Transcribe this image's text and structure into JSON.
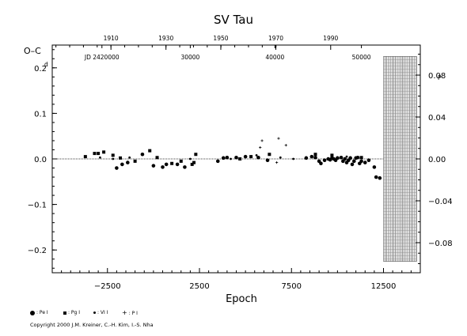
{
  "chart_data": {
    "type": "scatter",
    "title": "SV Tau",
    "xlabel": "Epoch",
    "ylabel": "O–C",
    "y_unit_left": "d",
    "y_unit_right": "P",
    "xlim": [
      -5500,
      14500
    ],
    "ylim": [
      -0.25,
      0.25
    ],
    "x_ticks": [
      {
        "value": -2500,
        "label": "−2500"
      },
      {
        "value": 2500,
        "label": "2500"
      },
      {
        "value": 7500,
        "label": "7500"
      },
      {
        "value": 12500,
        "label": "12500"
      }
    ],
    "y_ticks": [
      {
        "value": 0.2,
        "label": "0.2"
      },
      {
        "value": 0.1,
        "label": "0.1"
      },
      {
        "value": 0.0,
        "label": "0.0"
      },
      {
        "value": -0.1,
        "label": "−0.1"
      },
      {
        "value": -0.2,
        "label": "−0.2"
      }
    ],
    "y2_ticks": [
      {
        "value": 0.08,
        "label": "0.08"
      },
      {
        "value": 0.04,
        "label": "0.04"
      },
      {
        "value": 0.0,
        "label": "0.00"
      },
      {
        "value": -0.04,
        "label": "−0.04"
      },
      {
        "value": -0.08,
        "label": "−0.08"
      }
    ],
    "year_ticks": [
      {
        "epoch": -2310,
        "label": "1910"
      },
      {
        "epoch": 680,
        "label": "1930"
      },
      {
        "epoch": 3660,
        "label": "1950"
      },
      {
        "epoch": 6650,
        "label": "1970"
      },
      {
        "epoch": 9630,
        "label": "1990"
      }
    ],
    "jd_labels": [
      {
        "epoch": -2800,
        "label": "JD 2420000"
      },
      {
        "epoch": 2000,
        "label": "30000"
      },
      {
        "epoch": 6600,
        "label": "40000"
      },
      {
        "epoch": 11300,
        "label": "50000"
      }
    ],
    "series": [
      {
        "name": "Pe",
        "marker": "circle",
        "values": [
          [
            -2000,
            -0.02
          ],
          [
            -1700,
            -0.012
          ],
          [
            -1400,
            -0.008
          ],
          [
            -600,
            0.01
          ],
          [
            0,
            -0.015
          ],
          [
            500,
            -0.018
          ],
          [
            700,
            -0.012
          ],
          [
            1300,
            -0.012
          ],
          [
            1700,
            -0.018
          ],
          [
            3500,
            -0.005
          ],
          [
            3800,
            0.002
          ],
          [
            4000,
            0.003
          ],
          [
            4500,
            0.003
          ],
          [
            5000,
            0.005
          ],
          [
            5700,
            0.003
          ],
          [
            6200,
            -0.003
          ],
          [
            8300,
            0.002
          ],
          [
            8600,
            0.005
          ],
          [
            8800,
            0.003
          ],
          [
            9000,
            -0.005
          ],
          [
            9100,
            -0.01
          ],
          [
            9300,
            -0.003
          ],
          [
            9500,
            0.0
          ],
          [
            9600,
            -0.002
          ],
          [
            9700,
            0.002
          ],
          [
            9800,
            0.0
          ],
          [
            9900,
            -0.003
          ],
          [
            10000,
            0.002
          ],
          [
            10200,
            0.003
          ],
          [
            10300,
            -0.005
          ],
          [
            10400,
            0.0
          ],
          [
            10500,
            -0.008
          ],
          [
            10600,
            -0.003
          ],
          [
            10700,
            0.002
          ],
          [
            10800,
            -0.012
          ],
          [
            10900,
            -0.005
          ],
          [
            11000,
            0.002
          ],
          [
            11100,
            0.003
          ],
          [
            11200,
            -0.01
          ],
          [
            11300,
            -0.005
          ],
          [
            11500,
            -0.008
          ],
          [
            11700,
            -0.003
          ],
          [
            12000,
            -0.018
          ],
          [
            12100,
            -0.04
          ],
          [
            12300,
            -0.042
          ]
        ]
      },
      {
        "name": "Pg",
        "marker": "square",
        "values": [
          [
            -3700,
            0.005
          ],
          [
            -3200,
            0.012
          ],
          [
            -3000,
            0.012
          ],
          [
            -2700,
            0.015
          ],
          [
            -2200,
            0.008
          ],
          [
            -1800,
            0.002
          ],
          [
            -1000,
            -0.005
          ],
          [
            -200,
            0.018
          ],
          [
            200,
            0.003
          ],
          [
            1000,
            -0.01
          ],
          [
            1500,
            -0.005
          ],
          [
            2100,
            -0.012
          ],
          [
            2200,
            -0.008
          ],
          [
            2300,
            0.01
          ],
          [
            4700,
            0.0
          ],
          [
            5300,
            0.005
          ],
          [
            6300,
            0.01
          ],
          [
            8800,
            0.01
          ],
          [
            9700,
            0.008
          ],
          [
            11300,
            0.003
          ]
        ]
      },
      {
        "name": "Vi",
        "marker": "smallcircle",
        "values": [
          [
            -2900,
            0.003
          ],
          [
            -2200,
            0.0
          ],
          [
            -1300,
            0.003
          ],
          [
            2000,
            0.0
          ],
          [
            4200,
            0.0
          ],
          [
            5600,
            0.008
          ],
          [
            6900,
            0.003
          ],
          [
            7600,
            0.0
          ],
          [
            10500,
            0.005
          ]
        ]
      },
      {
        "name": "Pl",
        "marker": "plus",
        "values": [
          [
            5900,
            0.04
          ],
          [
            5800,
            0.025
          ],
          [
            6800,
            0.045
          ],
          [
            7200,
            0.03
          ],
          [
            6700,
            -0.008
          ]
        ]
      }
    ],
    "fit_line": {
      "y": 0.0,
      "style": "dotted"
    },
    "hatched_region": {
      "x_from": 12500,
      "x_to": 14300,
      "y_from": -0.225,
      "y_to": 0.225
    },
    "legend_placement": "bottom-left"
  },
  "legend": [
    {
      "marker": "circle",
      "label": ": Pe I"
    },
    {
      "marker": "square",
      "label": ": Pg I"
    },
    {
      "marker": "smallcircle",
      "label": ": VI I"
    },
    {
      "marker": "plus",
      "label": ": P I"
    }
  ],
  "copyright": "Copyright 2000 J.M. Kreiner, C.-H. Kim, I.-S. Nha"
}
